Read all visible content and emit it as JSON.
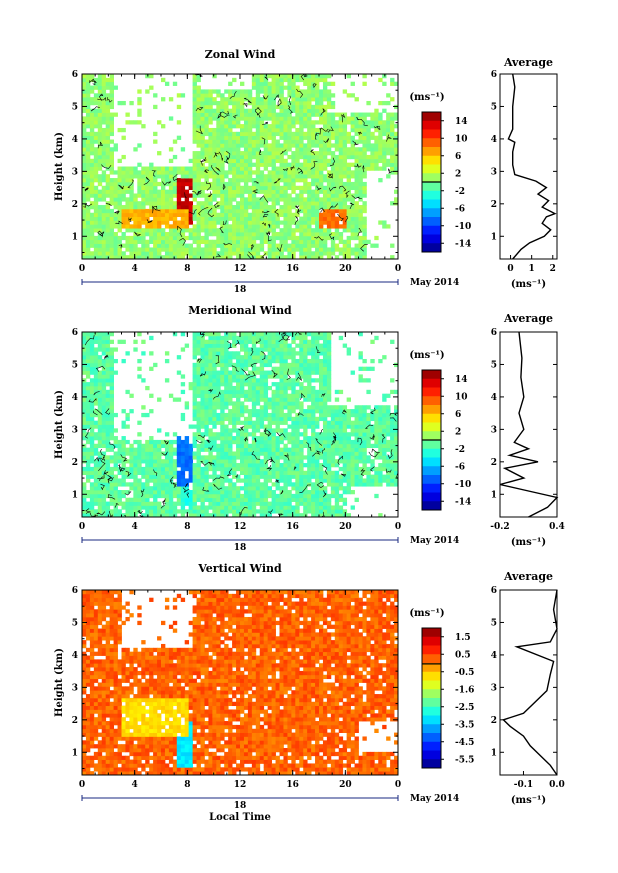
{
  "chart_data": [
    {
      "type": "heatmap",
      "title": "Zonal Wind",
      "ylabel": "Height (km)",
      "x_ticks": [
        "0",
        "4",
        "8",
        "12",
        "16",
        "20",
        "0"
      ],
      "date_label": "18",
      "date_right": "May 2014",
      "xlim": [
        0,
        24
      ],
      "ylim": [
        0.3,
        6.0
      ],
      "y_ticks": [
        "1",
        "2",
        "3",
        "4",
        "5",
        "6"
      ],
      "colorbar": {
        "unit": "(ms⁻¹)",
        "range": [
          -15,
          15
        ],
        "ticks": [
          "14",
          "10",
          "6",
          "2",
          "-2",
          "-6",
          "-10",
          "-14"
        ]
      },
      "background_value": 0.5,
      "hot_blocks": [
        {
          "x": [
            7.3,
            8.3
          ],
          "y": [
            1.3,
            2.8
          ],
          "value": 13
        },
        {
          "x": [
            18.0,
            20.0
          ],
          "y": [
            1.3,
            1.8
          ],
          "value": 8
        },
        {
          "x": [
            3.0,
            8.0
          ],
          "y": [
            1.3,
            1.8
          ],
          "value": 6
        }
      ],
      "gaps": [
        {
          "x": [
            2.5,
            8.5
          ],
          "y": [
            3.2,
            6.0
          ]
        },
        {
          "x": [
            9.0,
            13.0
          ],
          "y": [
            5.5,
            6.0
          ]
        },
        {
          "x": [
            19.0,
            24.0
          ],
          "y": [
            4.8,
            6.0
          ]
        },
        {
          "x": [
            21.5,
            24.0
          ],
          "y": [
            0.3,
            3.0
          ]
        }
      ],
      "average": {
        "title": "Average",
        "xlabel": "(ms⁻¹)",
        "xlim": [
          -0.5,
          2.2
        ],
        "x_ticks": [
          "0",
          "1",
          "2"
        ],
        "profile": [
          [
            0.1,
            0.3
          ],
          [
            0.5,
            0.6
          ],
          [
            0.9,
            0.8
          ],
          [
            1.6,
            1.0
          ],
          [
            1.9,
            1.2
          ],
          [
            1.5,
            1.4
          ],
          [
            1.7,
            1.6
          ],
          [
            2.1,
            1.7
          ],
          [
            1.5,
            1.9
          ],
          [
            1.8,
            2.1
          ],
          [
            1.3,
            2.3
          ],
          [
            1.7,
            2.5
          ],
          [
            1.2,
            2.7
          ],
          [
            0.2,
            2.9
          ],
          [
            0.1,
            3.2
          ],
          [
            0.1,
            3.6
          ],
          [
            0.2,
            3.9
          ],
          [
            -0.1,
            4.0
          ],
          [
            0.1,
            4.3
          ],
          [
            0.1,
            5.0
          ],
          [
            0.2,
            5.6
          ],
          [
            0.1,
            6.0
          ]
        ]
      }
    },
    {
      "type": "heatmap",
      "title": "Meridional Wind",
      "ylabel": "Height (km)",
      "x_ticks": [
        "0",
        "4",
        "8",
        "12",
        "16",
        "20",
        "0"
      ],
      "date_label": "18",
      "date_right": "May 2014",
      "xlim": [
        0,
        24
      ],
      "ylim": [
        0.3,
        6.0
      ],
      "y_ticks": [
        "1",
        "2",
        "3",
        "4",
        "5",
        "6"
      ],
      "colorbar": {
        "unit": "(ms⁻¹)",
        "range": [
          -15,
          15
        ],
        "ticks": [
          "14",
          "10",
          "6",
          "2",
          "-2",
          "-6",
          "-10",
          "-14"
        ]
      },
      "background_value": -1.0,
      "hot_blocks": [
        {
          "x": [
            7.3,
            8.3
          ],
          "y": [
            1.3,
            2.8
          ],
          "value": -8
        },
        {
          "x": [
            7.6,
            8.3
          ],
          "y": [
            0.5,
            1.3
          ],
          "value": -3
        }
      ],
      "gaps": [
        {
          "x": [
            2.5,
            8.5
          ],
          "y": [
            2.7,
            6.0
          ]
        },
        {
          "x": [
            19.0,
            24.0
          ],
          "y": [
            3.8,
            6.0
          ]
        },
        {
          "x": [
            20.0,
            24.0
          ],
          "y": [
            0.3,
            1.3
          ]
        }
      ],
      "average": {
        "title": "Average",
        "xlabel": "(ms⁻¹)",
        "xlim": [
          -0.2,
          0.4
        ],
        "x_ticks": [
          "-0.2",
          "0.4"
        ],
        "profile": [
          [
            0.1,
            0.3
          ],
          [
            0.3,
            0.6
          ],
          [
            0.4,
            0.9
          ],
          [
            0.1,
            1.1
          ],
          [
            -0.2,
            1.3
          ],
          [
            0.05,
            1.5
          ],
          [
            -0.15,
            1.8
          ],
          [
            0.2,
            2.0
          ],
          [
            -0.1,
            2.2
          ],
          [
            0.1,
            2.4
          ],
          [
            -0.05,
            2.6
          ],
          [
            0.0,
            2.8
          ],
          [
            0.05,
            3.0
          ],
          [
            0.0,
            3.5
          ],
          [
            0.05,
            4.0
          ],
          [
            0.02,
            4.6
          ],
          [
            0.03,
            5.2
          ],
          [
            0.0,
            6.0
          ]
        ]
      }
    },
    {
      "type": "heatmap",
      "title": "Vertical Wind",
      "ylabel": "Height (km)",
      "xlabel": "Local Time",
      "x_ticks": [
        "0",
        "4",
        "8",
        "12",
        "16",
        "20",
        "0"
      ],
      "date_label": "18",
      "date_right": "May 2014",
      "xlim": [
        0,
        24
      ],
      "ylim": [
        0.3,
        6.0
      ],
      "y_ticks": [
        "1",
        "2",
        "3",
        "4",
        "5",
        "6"
      ],
      "colorbar": {
        "unit": "(ms⁻¹)",
        "range": [
          -6.1,
          2.1
        ],
        "ticks": [
          "1.5",
          "0.5",
          "-0.5",
          "-1.6",
          "-2.5",
          "-3.5",
          "-4.5",
          "-5.5"
        ]
      },
      "background_value": 0.3,
      "hot_blocks": [
        {
          "x": [
            7.3,
            8.3
          ],
          "y": [
            0.5,
            2.0
          ],
          "value": -3.2
        },
        {
          "x": [
            3.0,
            8.0
          ],
          "y": [
            1.5,
            2.7
          ],
          "value": -0.7
        }
      ],
      "gaps": [
        {
          "x": [
            3.0,
            8.5
          ],
          "y": [
            4.2,
            6.0
          ]
        },
        {
          "x": [
            21.0,
            24.0
          ],
          "y": [
            1.0,
            2.0
          ]
        }
      ],
      "average": {
        "title": "Average",
        "xlabel": "(ms⁻¹)",
        "xlim": [
          -0.17,
          0.0
        ],
        "x_ticks": [
          "-0.1",
          "0.0"
        ],
        "profile": [
          [
            0.0,
            0.3
          ],
          [
            -0.02,
            0.6
          ],
          [
            -0.05,
            0.9
          ],
          [
            -0.08,
            1.2
          ],
          [
            -0.1,
            1.5
          ],
          [
            -0.14,
            1.8
          ],
          [
            -0.16,
            2.0
          ],
          [
            -0.1,
            2.2
          ],
          [
            -0.07,
            2.5
          ],
          [
            -0.03,
            2.9
          ],
          [
            -0.02,
            3.4
          ],
          [
            -0.01,
            3.8
          ],
          [
            -0.12,
            4.25
          ],
          [
            -0.02,
            4.4
          ],
          [
            0.0,
            4.8
          ],
          [
            -0.01,
            5.4
          ],
          [
            0.0,
            6.0
          ]
        ]
      }
    }
  ]
}
